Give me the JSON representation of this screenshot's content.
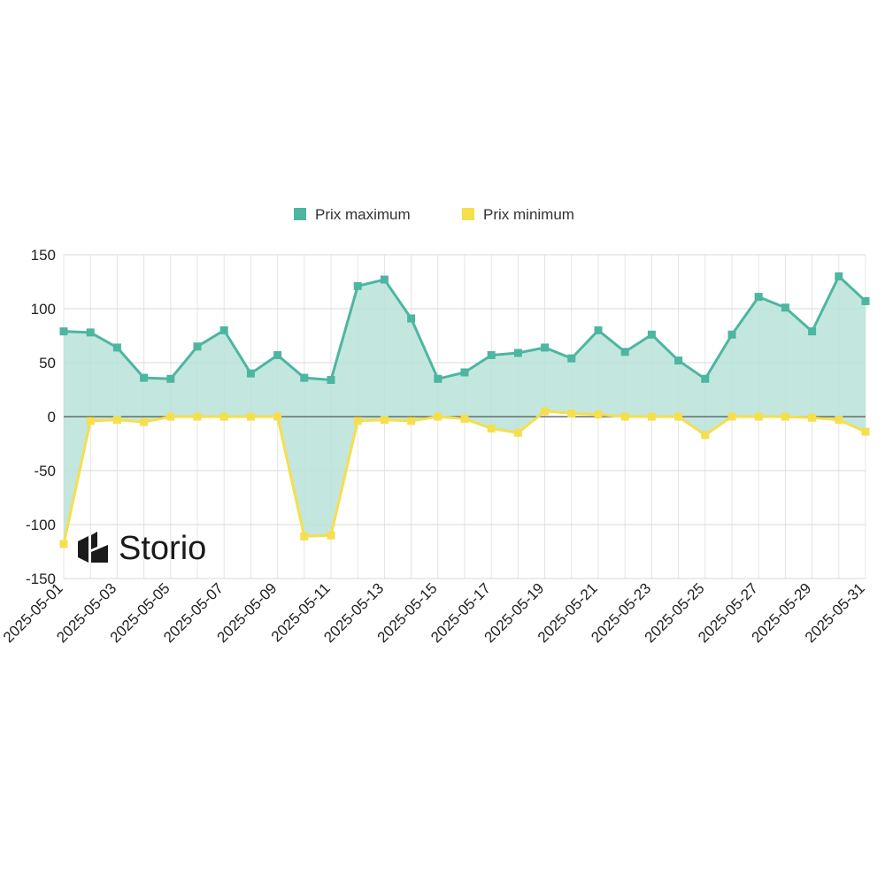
{
  "chart_data": {
    "type": "line",
    "x": [
      "2025-05-01",
      "2025-05-02",
      "2025-05-03",
      "2025-05-04",
      "2025-05-05",
      "2025-05-06",
      "2025-05-07",
      "2025-05-08",
      "2025-05-09",
      "2025-05-10",
      "2025-05-11",
      "2025-05-12",
      "2025-05-13",
      "2025-05-14",
      "2025-05-15",
      "2025-05-16",
      "2025-05-17",
      "2025-05-18",
      "2025-05-19",
      "2025-05-20",
      "2025-05-21",
      "2025-05-22",
      "2025-05-23",
      "2025-05-24",
      "2025-05-25",
      "2025-05-26",
      "2025-05-27",
      "2025-05-28",
      "2025-05-29",
      "2025-05-30",
      "2025-05-31"
    ],
    "x_tick_labels": [
      "2025-05-01",
      "2025-05-03",
      "2025-05-05",
      "2025-05-07",
      "2025-05-09",
      "2025-05-11",
      "2025-05-13",
      "2025-05-15",
      "2025-05-17",
      "2025-05-19",
      "2025-05-21",
      "2025-05-23",
      "2025-05-25",
      "2025-05-27",
      "2025-05-29",
      "2025-05-31"
    ],
    "series": [
      {
        "name": "Prix maximum",
        "color": "#4db6a0",
        "values": [
          79,
          78,
          64,
          36,
          35,
          65,
          80,
          40,
          57,
          36,
          34,
          121,
          127,
          91,
          35,
          41,
          57,
          59,
          64,
          54,
          80,
          60,
          76,
          52,
          35,
          76,
          111,
          101,
          79,
          130,
          107
        ]
      },
      {
        "name": "Prix minimum",
        "color": "#f5df4d",
        "values": [
          -118,
          -4,
          -3,
          -5,
          0,
          0,
          0,
          0,
          0,
          -111,
          -110,
          -4,
          -3,
          -4,
          0,
          -2,
          -11,
          -15,
          5,
          3,
          2,
          0,
          0,
          0,
          -17,
          0,
          0,
          0,
          -1,
          -3,
          -14
        ]
      }
    ],
    "ylim": [
      -150,
      150
    ],
    "y_ticks": [
      150,
      100,
      50,
      0,
      -50,
      -100,
      -150
    ],
    "fill_between": true,
    "fill_color": "#b9e3d9",
    "grid": true,
    "legend_position": "top"
  },
  "brand": {
    "name": "Storio",
    "logo_icon": "storio-logo-icon"
  }
}
